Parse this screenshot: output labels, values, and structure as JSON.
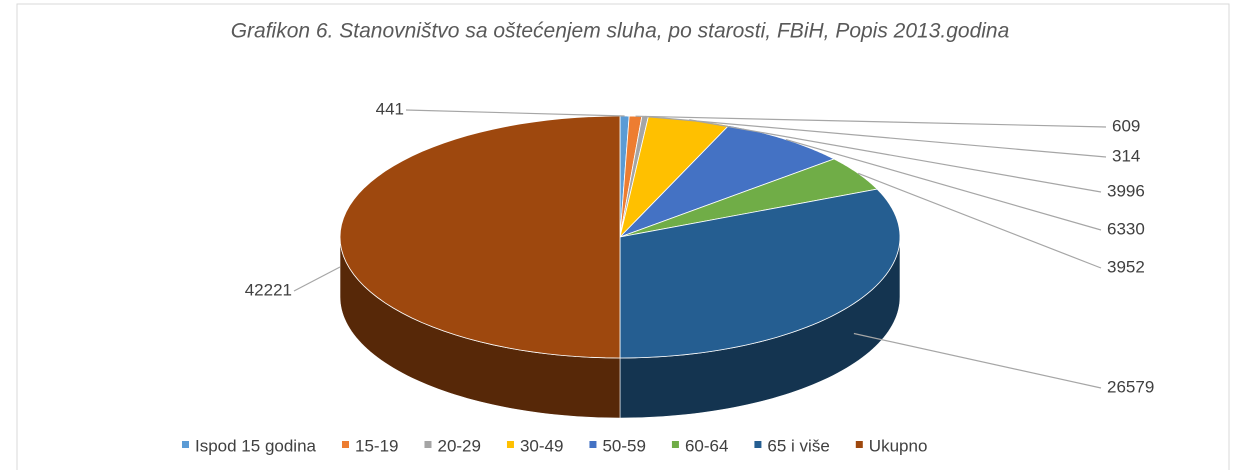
{
  "chart_data": {
    "type": "pie3d",
    "title": "Grafikon 6. Stanovništvo sa oštećenjem sluha, po starosti, FBiH,  Popis 2013.godina",
    "categories": [
      "Ispod 15 godina",
      "15-19",
      "20-29",
      "30-49",
      "50-59",
      "60-64",
      "65 i više",
      "Ukupno"
    ],
    "values": [
      441,
      609,
      314,
      3996,
      6330,
      3952,
      26579,
      42221
    ],
    "colors": [
      "#5b9bd5",
      "#ed7d31",
      "#a5a5a5",
      "#ffc000",
      "#4472c4",
      "#70ad47",
      "#255e91",
      "#9e480e"
    ],
    "legend": "bottom"
  }
}
